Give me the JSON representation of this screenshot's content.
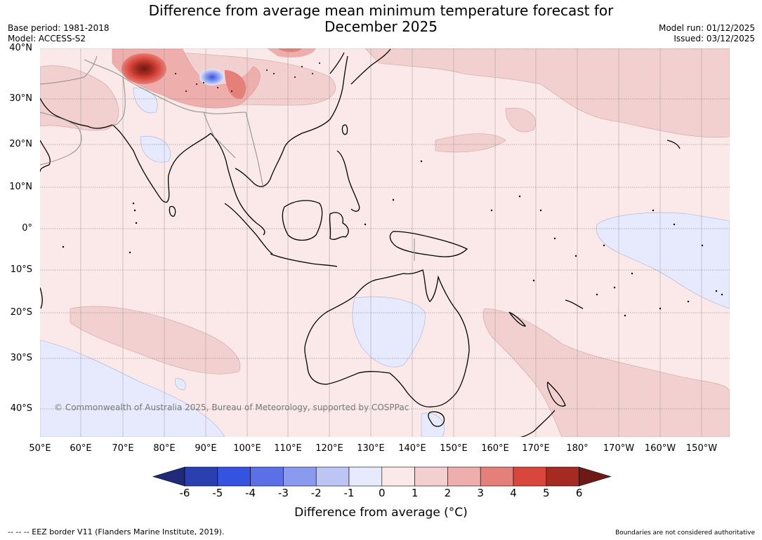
{
  "title": "Difference from average mean minimum temperature forecast for December 2025",
  "title_line1": "Difference from average mean minimum temperature forecast for",
  "title_line2": "December 2025",
  "base_period": "Base period: 1981-2018",
  "model": "Model: ACCESS-S2",
  "model_run": "Model run: 01/12/2025",
  "issued": "Issued: 03/12/2025",
  "latitude_labels": [
    "40°N",
    "30°N",
    "20°N",
    "10°N",
    "0°",
    "10°S",
    "20°S",
    "30°S",
    "40°S"
  ],
  "longitude_labels": [
    "50°E",
    "60°E",
    "70°E",
    "80°E",
    "90°E",
    "100°E",
    "110°E",
    "120°E",
    "130°E",
    "140°E",
    "150°E",
    "160°E",
    "170°E",
    "180°",
    "170°W",
    "160°W",
    "150°W"
  ],
  "colorbar": {
    "ticks": [
      "-6",
      "-5",
      "-4",
      "-3",
      "-2",
      "-1",
      "0",
      "1",
      "2",
      "3",
      "4",
      "5",
      "6"
    ],
    "colors": [
      "#1f2a7a",
      "#2a3fb0",
      "#3353e0",
      "#5b70e6",
      "#8a9aee",
      "#bcc5f4",
      "#e6eafc",
      "#fbe8e8",
      "#f3d0d0",
      "#eeaeab",
      "#e57f79",
      "#d9473c",
      "#a52a22",
      "#6e1a14"
    ],
    "label": "Difference from average (°C)"
  },
  "copyright": "© Commonwealth of Australia 2025, Bureau of Meteorology, supported by COSPPac",
  "footer_left": "--  --  -- EEZ border V11 (Flanders Marine Institute, 2019).",
  "footer_right": "Boundaries are not considered authoritative"
}
